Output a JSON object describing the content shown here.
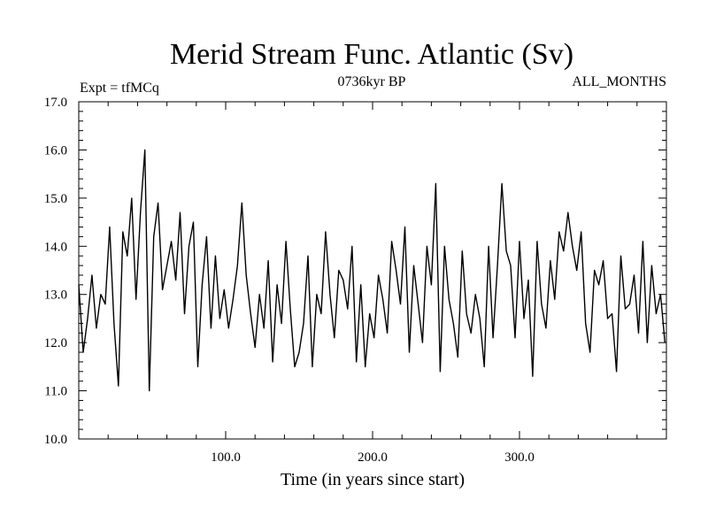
{
  "chart_data": {
    "type": "line",
    "title": "Merid Stream Func. Atlantic (Sv)",
    "subtitle_left": "Expt = tfMCq",
    "subtitle_center": "0736kyr BP",
    "subtitle_right": "ALL_MONTHS",
    "xlabel": "Time (in years since start)",
    "ylabel": "",
    "xlim": [
      0,
      400
    ],
    "ylim": [
      10.0,
      17.0
    ],
    "x_ticks": [
      {
        "value": 100,
        "label": "100.0"
      },
      {
        "value": 200,
        "label": "200.0"
      },
      {
        "value": 300,
        "label": "300.0"
      }
    ],
    "y_ticks": [
      {
        "value": 10,
        "label": "10.0"
      },
      {
        "value": 11,
        "label": "11.0"
      },
      {
        "value": 12,
        "label": "12.0"
      },
      {
        "value": 13,
        "label": "13.0"
      },
      {
        "value": 14,
        "label": "14.0"
      },
      {
        "value": 15,
        "label": "15.0"
      },
      {
        "value": 16,
        "label": "16.0"
      },
      {
        "value": 17,
        "label": "17.0"
      }
    ],
    "grid": false,
    "series": [
      {
        "color": "#000000",
        "x": [
          0,
          3,
          6,
          9,
          12,
          15,
          18,
          21,
          24,
          27,
          30,
          33,
          36,
          39,
          42,
          45,
          48,
          51,
          54,
          57,
          60,
          63,
          66,
          69,
          72,
          75,
          78,
          81,
          84,
          87,
          90,
          93,
          96,
          99,
          102,
          105,
          108,
          111,
          114,
          117,
          120,
          123,
          126,
          129,
          132,
          135,
          138,
          141,
          144,
          147,
          150,
          153,
          156,
          159,
          162,
          165,
          168,
          171,
          174,
          177,
          180,
          183,
          186,
          189,
          192,
          195,
          198,
          201,
          204,
          207,
          210,
          213,
          216,
          219,
          222,
          225,
          228,
          231,
          234,
          237,
          240,
          243,
          246,
          249,
          252,
          255,
          258,
          261,
          264,
          267,
          270,
          273,
          276,
          279,
          282,
          285,
          288,
          291,
          294,
          297,
          300,
          303,
          306,
          309,
          312,
          315,
          318,
          321,
          324,
          327,
          330,
          333,
          336,
          339,
          342,
          345,
          348,
          351,
          354,
          357,
          360,
          363,
          366,
          369,
          372,
          375,
          378,
          381,
          384,
          387,
          390,
          393,
          396,
          399
        ],
        "values": [
          13.2,
          11.8,
          12.5,
          13.4,
          12.3,
          13.0,
          12.8,
          14.4,
          12.4,
          11.1,
          14.3,
          13.8,
          15.0,
          12.9,
          14.7,
          16.0,
          11.0,
          14.2,
          14.9,
          13.1,
          13.6,
          14.1,
          13.3,
          14.7,
          12.6,
          14.0,
          14.5,
          11.5,
          13.2,
          14.2,
          12.3,
          13.8,
          12.5,
          13.1,
          12.3,
          12.9,
          13.6,
          14.9,
          13.4,
          12.6,
          11.9,
          13.0,
          12.3,
          13.7,
          11.6,
          13.2,
          12.4,
          14.1,
          12.7,
          11.5,
          11.8,
          12.4,
          13.8,
          11.5,
          13.0,
          12.6,
          14.3,
          13.0,
          12.1,
          13.5,
          13.3,
          12.7,
          14.0,
          11.6,
          13.2,
          11.5,
          12.6,
          12.1,
          13.4,
          12.9,
          12.2,
          14.1,
          13.5,
          12.8,
          14.4,
          11.8,
          13.6,
          12.8,
          12.0,
          14.0,
          13.2,
          15.3,
          11.4,
          14.0,
          12.9,
          12.4,
          11.7,
          13.9,
          12.6,
          12.2,
          13.0,
          12.5,
          11.5,
          14.0,
          12.1,
          13.6,
          15.3,
          13.9,
          13.6,
          12.1,
          14.1,
          12.5,
          13.3,
          11.3,
          14.1,
          12.8,
          12.3,
          13.7,
          12.9,
          14.3,
          13.9,
          14.7,
          14.0,
          13.5,
          14.3,
          12.4,
          11.8,
          13.5,
          13.2,
          13.7,
          12.5,
          12.6,
          11.4,
          13.8,
          12.7,
          12.8,
          13.4,
          12.2,
          14.1,
          12.0,
          13.6,
          12.6,
          13.0,
          12.0
        ]
      }
    ]
  }
}
